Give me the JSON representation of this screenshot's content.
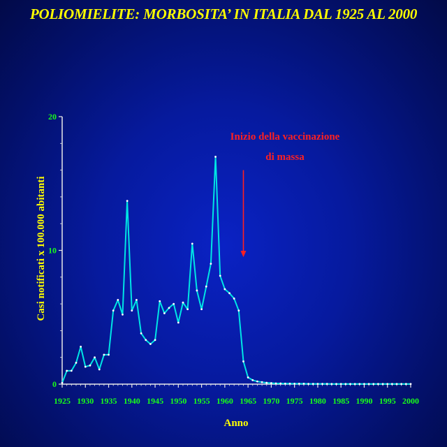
{
  "chart_data": {
    "type": "line",
    "title": "POLIOMIELITE: MORBOSITA’ IN ITALIA DAL 1925 AL 2000",
    "xlabel": "Anno",
    "ylabel": "Casi notificati x 100.000 abitanti",
    "xlim": [
      1925,
      2000
    ],
    "ylim": [
      0,
      20
    ],
    "x_ticks": [
      1925,
      1930,
      1935,
      1940,
      1945,
      1950,
      1955,
      1960,
      1965,
      1970,
      1975,
      1980,
      1985,
      1990,
      1995,
      2000
    ],
    "y_ticks": [
      0,
      10,
      20
    ],
    "grid": false,
    "legend": "none",
    "series": [
      {
        "color": "#00e5e5",
        "x": [
          1925,
          1926,
          1927,
          1928,
          1929,
          1930,
          1931,
          1932,
          1933,
          1934,
          1935,
          1936,
          1937,
          1938,
          1939,
          1940,
          1941,
          1942,
          1943,
          1944,
          1945,
          1946,
          1947,
          1948,
          1949,
          1950,
          1951,
          1952,
          1953,
          1954,
          1955,
          1956,
          1957,
          1958,
          1959,
          1960,
          1961,
          1962,
          1963,
          1964,
          1965,
          1966,
          1967,
          1968,
          1969,
          1970,
          1971,
          1972,
          1973,
          1974,
          1975,
          1976,
          1977,
          1978,
          1979,
          1980,
          1981,
          1982,
          1983,
          1984,
          1985,
          1986,
          1987,
          1988,
          1989,
          1990,
          1991,
          1992,
          1993,
          1994,
          1995,
          1996,
          1997,
          1998,
          1999,
          2000
        ],
        "values": [
          0.1,
          1.0,
          1.0,
          1.6,
          2.8,
          1.3,
          1.4,
          2.0,
          1.1,
          2.2,
          2.2,
          5.5,
          6.3,
          5.2,
          13.7,
          5.5,
          6.3,
          3.8,
          3.3,
          3.0,
          3.3,
          6.2,
          5.3,
          5.7,
          6.0,
          4.6,
          6.1,
          5.6,
          10.5,
          7.0,
          5.6,
          7.3,
          9.0,
          17.0,
          8.1,
          7.1,
          6.8,
          6.4,
          5.5,
          1.7,
          0.5,
          0.3,
          0.2,
          0.15,
          0.1,
          0.08,
          0.05,
          0.05,
          0.04,
          0.04,
          0.03,
          0.03,
          0.03,
          0.02,
          0.02,
          0.02,
          0.02,
          0.02,
          0.01,
          0.01,
          0.01,
          0.01,
          0.01,
          0.01,
          0.01,
          0.01,
          0.01,
          0.01,
          0.01,
          0.01,
          0.01,
          0.01,
          0.01,
          0.01,
          0.01,
          0.01
        ]
      }
    ],
    "annotations": [
      {
        "text_line1": "Inizio della vaccinazione",
        "text_line2": "di massa",
        "arrow_x": 1964,
        "arrow_from_y": 16,
        "arrow_to_y": 9.5,
        "color": "#ff2020"
      }
    ]
  },
  "colors": {
    "axis": "#e8e8e8",
    "tick_label": "#19ff19",
    "axis_title": "#ffff00",
    "annotation": "#ff2020"
  }
}
